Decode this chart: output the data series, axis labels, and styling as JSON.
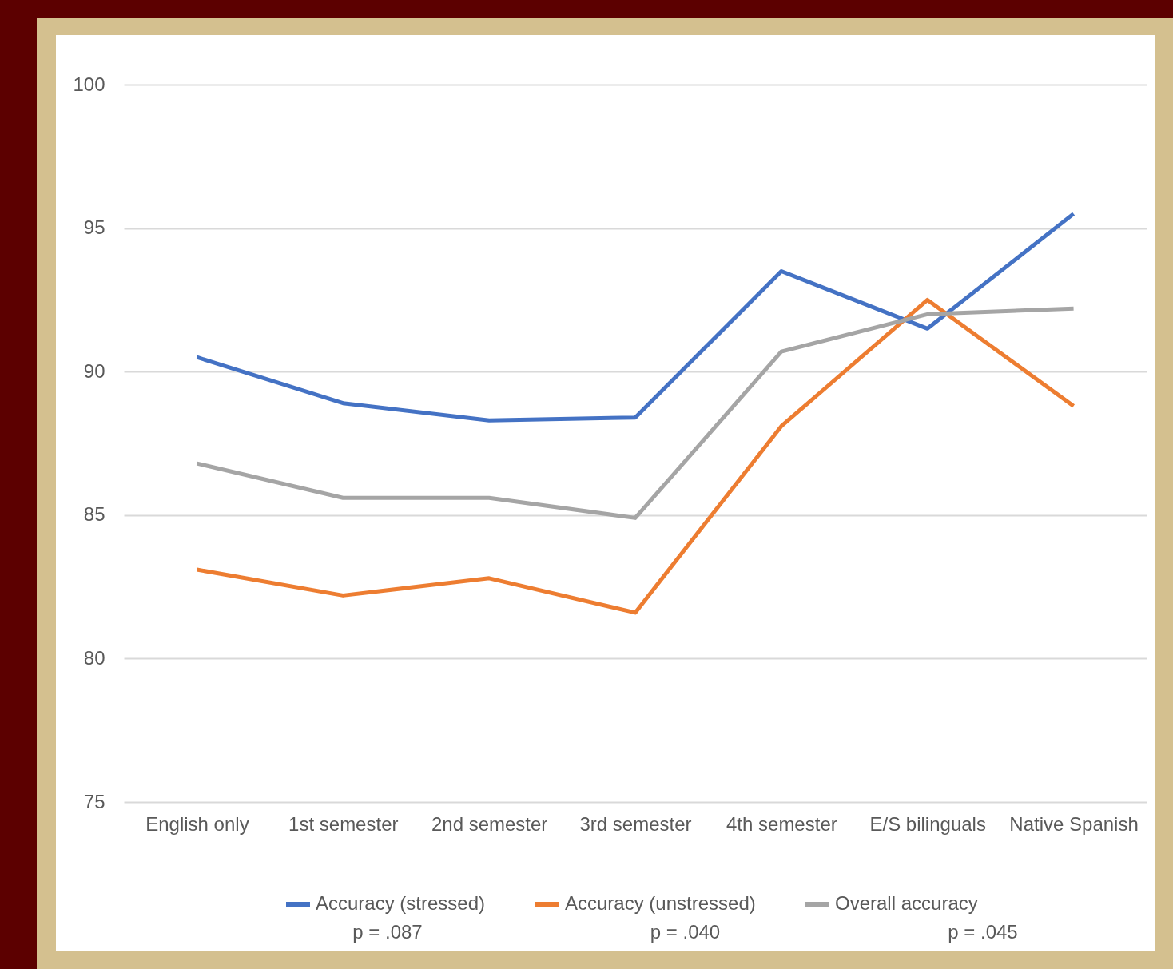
{
  "chart_data": {
    "type": "line",
    "categories": [
      "English only",
      "1st semester",
      "2nd semester",
      "3rd semester",
      "4th semester",
      "E/S bilinguals",
      "Native Spanish"
    ],
    "series": [
      {
        "name": "Accuracy (stressed)",
        "color": "#4472c4",
        "values": [
          90.5,
          88.9,
          88.3,
          88.4,
          93.5,
          91.5,
          95.5
        ]
      },
      {
        "name": "Accuracy (unstressed)",
        "color": "#ed7d31",
        "values": [
          83.1,
          82.2,
          82.8,
          81.6,
          88.1,
          92.5,
          88.8
        ]
      },
      {
        "name": "Overall accuracy",
        "color": "#a5a5a5",
        "values": [
          86.8,
          85.6,
          85.6,
          84.9,
          90.7,
          92.0,
          92.2
        ]
      }
    ],
    "ylim": [
      75,
      100
    ],
    "yticks": [
      75,
      80,
      85,
      90,
      95,
      100
    ],
    "grid": "y",
    "legend": "bottom",
    "marker": "none",
    "line_style": "solid",
    "annotations": [
      "p = .087",
      "p = .040",
      "p = .045"
    ]
  }
}
